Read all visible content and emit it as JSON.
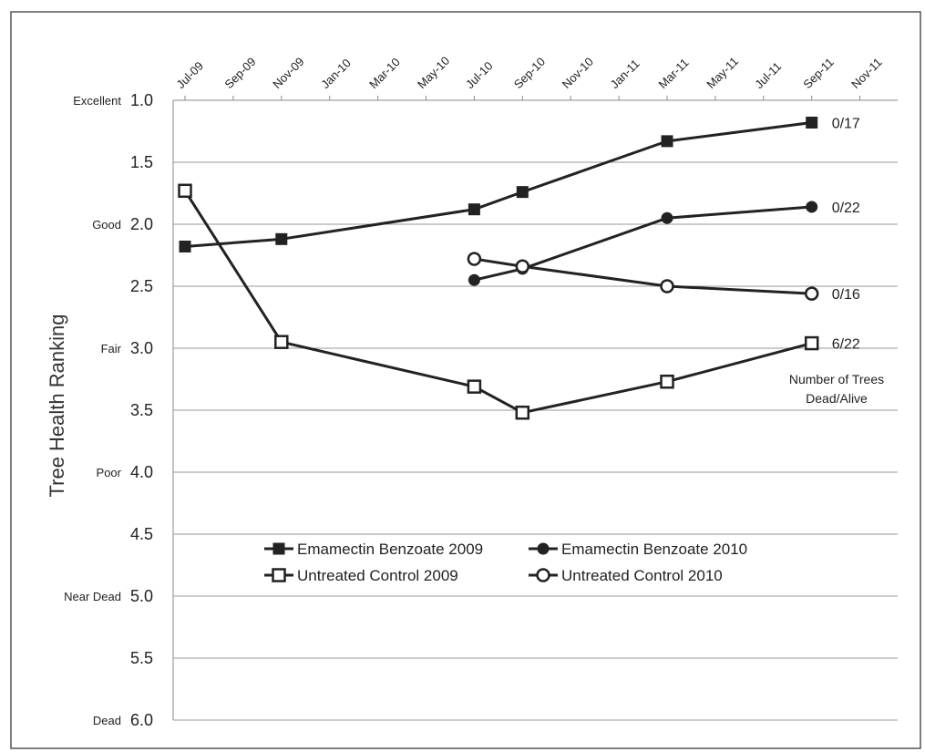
{
  "chart_data": {
    "type": "line",
    "title": "",
    "xlabel": "",
    "ylabel": "Tree Health Ranking",
    "x_ticks": [
      "Jul-09",
      "Sep-09",
      "Nov-09",
      "Jan-10",
      "Mar-10",
      "May-10",
      "Jul-10",
      "Sep-10",
      "Nov-10",
      "Jan-11",
      "Mar-11",
      "May-11",
      "Jul-11",
      "Sep-11",
      "Nov-11"
    ],
    "y_ticks": [
      "1.0",
      "1.5",
      "2.0",
      "2.5",
      "3.0",
      "3.5",
      "4.0",
      "4.5",
      "5.0",
      "5.5",
      "6.0"
    ],
    "y_categories": [
      {
        "value": 1.0,
        "label": "Excellent"
      },
      {
        "value": 2.0,
        "label": "Good"
      },
      {
        "value": 3.0,
        "label": "Fair"
      },
      {
        "value": 4.0,
        "label": "Poor"
      },
      {
        "value": 5.0,
        "label": "Near Dead"
      },
      {
        "value": 6.0,
        "label": "Dead"
      }
    ],
    "ylim": [
      1.0,
      6.0
    ],
    "y_inverted": true,
    "grid": true,
    "legend_position": "center",
    "series": [
      {
        "name": "Emamectin Benzoate 2009",
        "marker": "square-filled",
        "points": [
          {
            "x": "Jul-09",
            "y": 2.18
          },
          {
            "x": "Nov-09",
            "y": 2.12
          },
          {
            "x": "Jul-10",
            "y": 1.88
          },
          {
            "x": "Sep-10",
            "y": 1.74
          },
          {
            "x": "Mar-11",
            "y": 1.33
          },
          {
            "x": "Sep-11",
            "y": 1.18
          }
        ],
        "end_label": "0/17"
      },
      {
        "name": "Emamectin Benzoate 2010",
        "marker": "circle-filled",
        "points": [
          {
            "x": "Jul-10",
            "y": 2.45
          },
          {
            "x": "Sep-10",
            "y": 2.36
          },
          {
            "x": "Mar-11",
            "y": 1.95
          },
          {
            "x": "Sep-11",
            "y": 1.86
          }
        ],
        "end_label": "0/22"
      },
      {
        "name": "Untreated Control 2009",
        "marker": "square-open",
        "points": [
          {
            "x": "Jul-09",
            "y": 1.73
          },
          {
            "x": "Nov-09",
            "y": 2.95
          },
          {
            "x": "Jul-10",
            "y": 3.31
          },
          {
            "x": "Sep-10",
            "y": 3.52
          },
          {
            "x": "Mar-11",
            "y": 3.27
          },
          {
            "x": "Sep-11",
            "y": 2.96
          }
        ],
        "end_label": "6/22"
      },
      {
        "name": "Untreated Control 2010",
        "marker": "circle-open",
        "points": [
          {
            "x": "Jul-10",
            "y": 2.28
          },
          {
            "x": "Sep-10",
            "y": 2.34
          },
          {
            "x": "Mar-11",
            "y": 2.5
          },
          {
            "x": "Sep-11",
            "y": 2.56
          }
        ],
        "end_label": "0/16"
      }
    ],
    "annotation": {
      "line1": "Number of Trees",
      "line2": "Dead/Alive"
    }
  }
}
